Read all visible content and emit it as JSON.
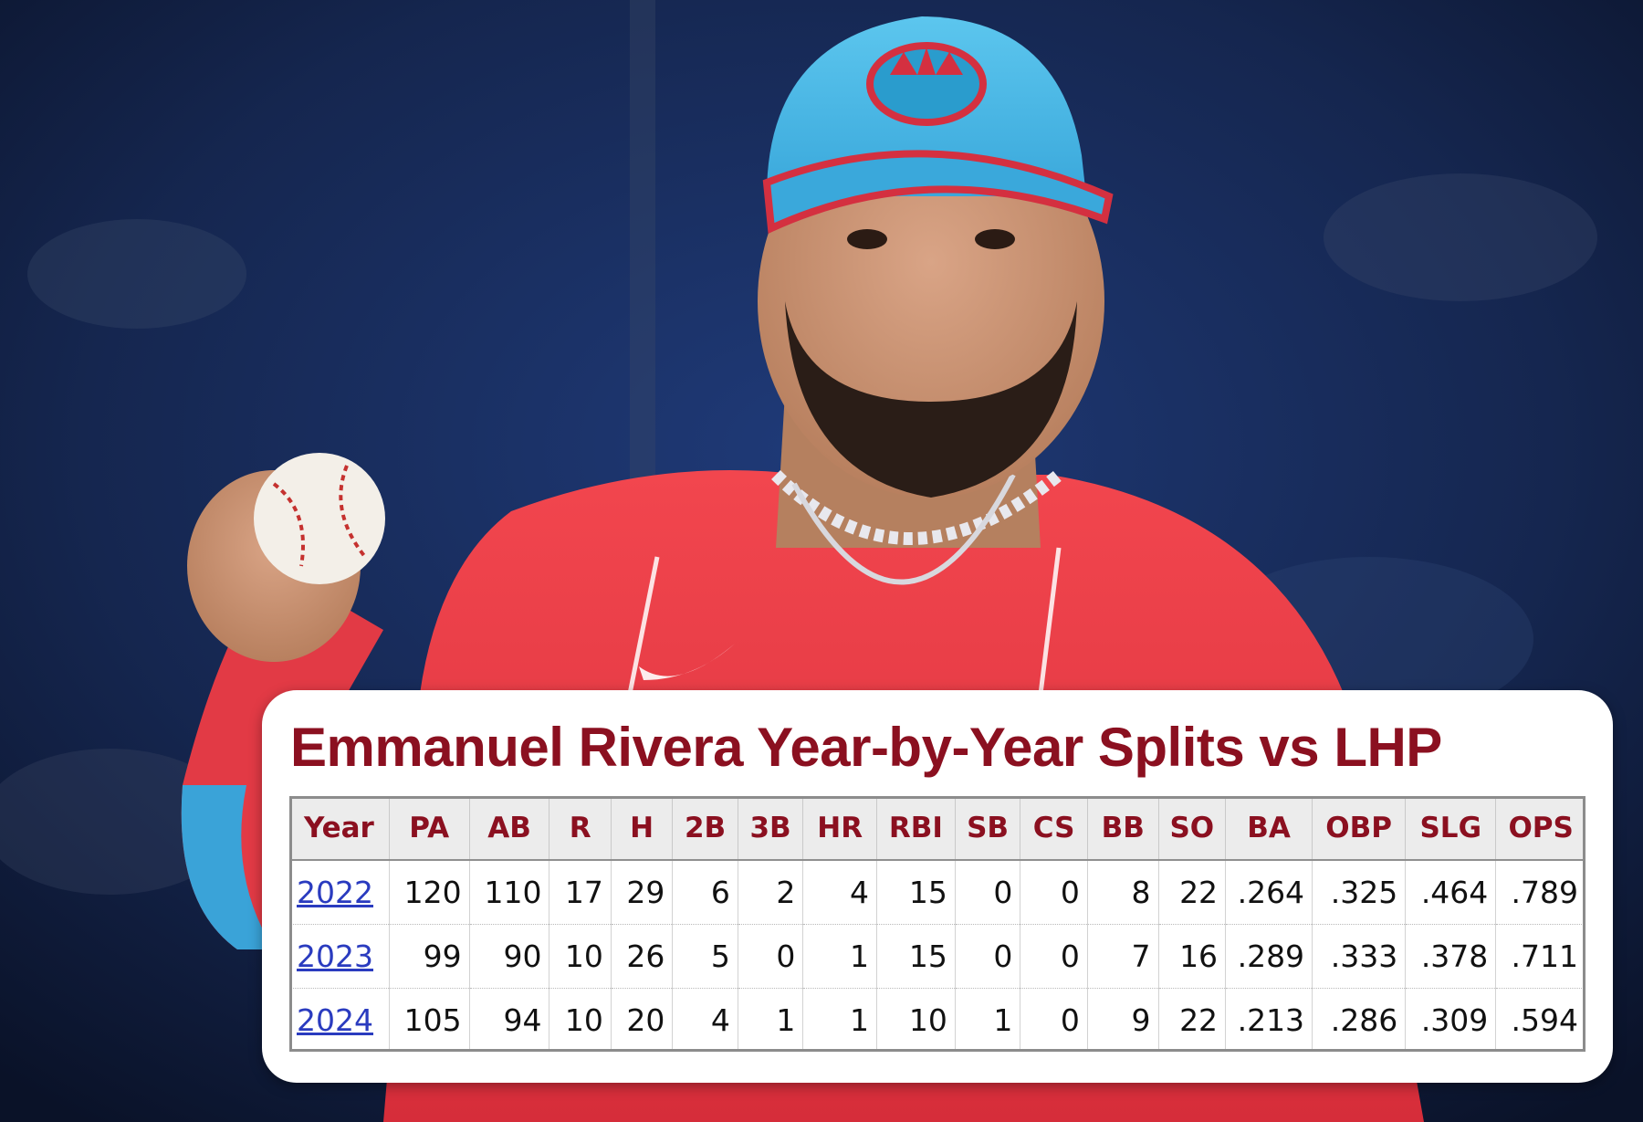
{
  "graphic": {
    "title": "Emmanuel Rivera Year-by-Year Splits vs LHP",
    "photo_subject": "baseball-player-photo",
    "colors": {
      "title": "#8b1020",
      "header_text": "#8b1020",
      "link": "#2a3bbf",
      "header_bg": "#ececec",
      "card_bg": "#ffffff"
    }
  },
  "chart_data": {
    "type": "table",
    "title": "Emmanuel Rivera Year-by-Year Splits vs LHP",
    "columns": [
      "Year",
      "PA",
      "AB",
      "R",
      "H",
      "2B",
      "3B",
      "HR",
      "RBI",
      "SB",
      "CS",
      "BB",
      "SO",
      "BA",
      "OBP",
      "SLG",
      "OPS"
    ],
    "rows": [
      [
        "2022",
        "120",
        "110",
        "17",
        "29",
        "6",
        "2",
        "4",
        "15",
        "0",
        "0",
        "8",
        "22",
        ".264",
        ".325",
        ".464",
        ".789"
      ],
      [
        "2023",
        "99",
        "90",
        "10",
        "26",
        "5",
        "0",
        "1",
        "15",
        "0",
        "0",
        "7",
        "16",
        ".289",
        ".333",
        ".378",
        ".711"
      ],
      [
        "2024",
        "105",
        "94",
        "10",
        "20",
        "4",
        "1",
        "1",
        "10",
        "1",
        "0",
        "9",
        "22",
        ".213",
        ".286",
        ".309",
        ".594"
      ]
    ]
  }
}
